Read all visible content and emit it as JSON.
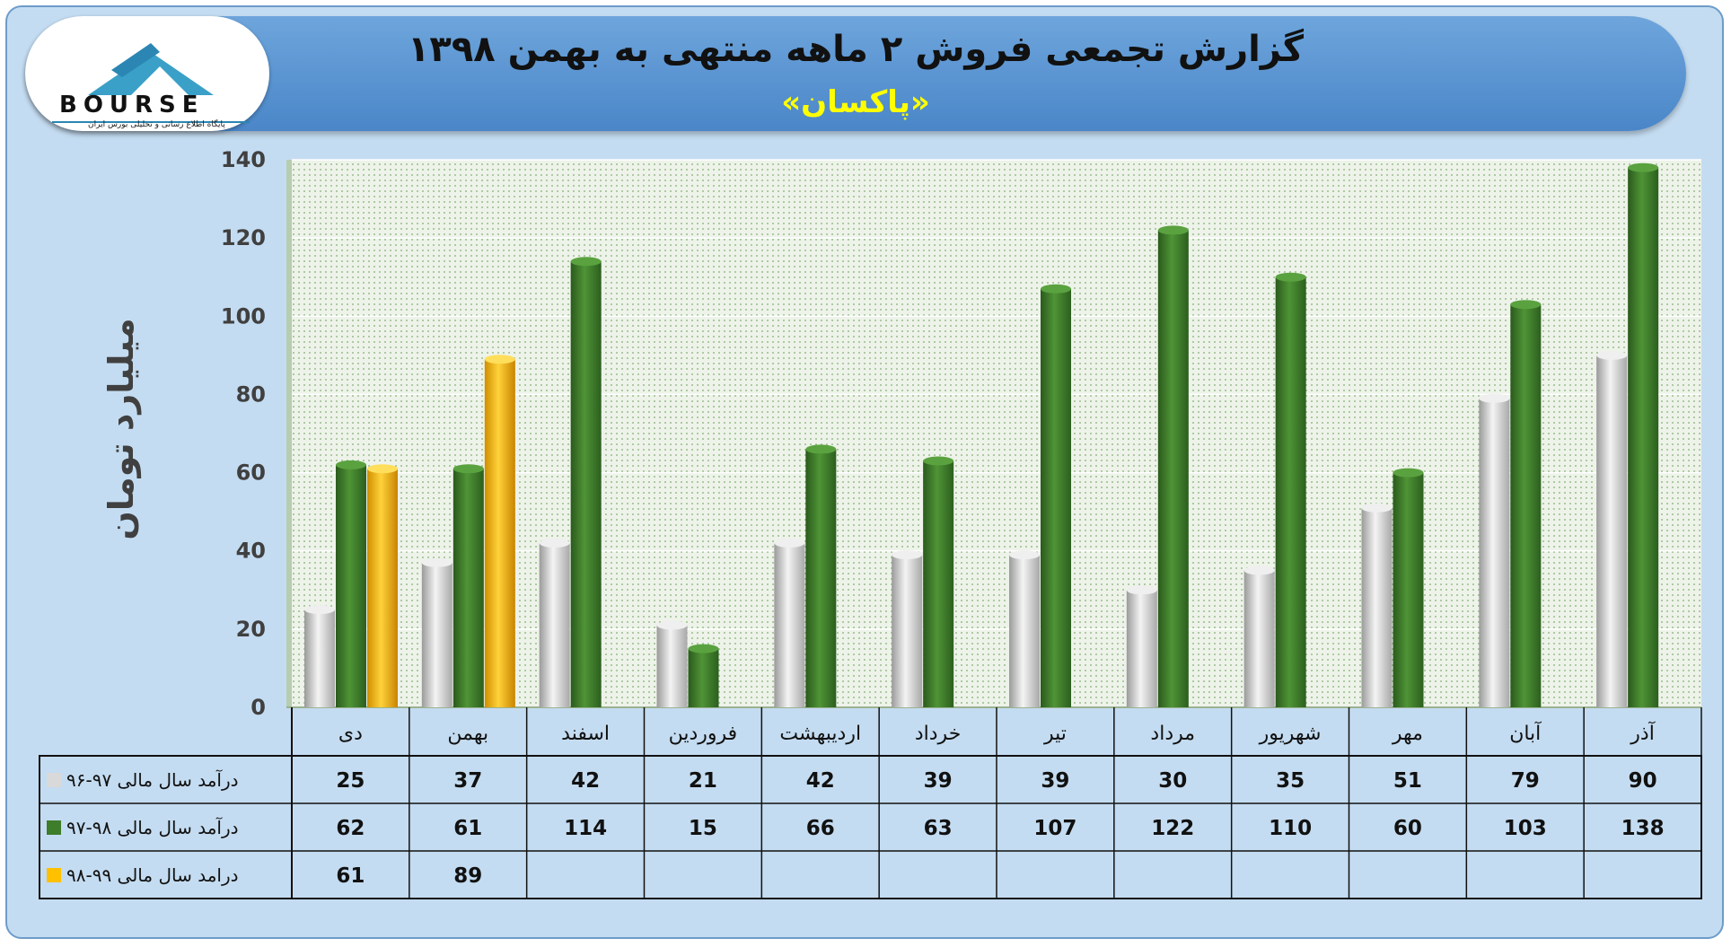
{
  "header": {
    "title": "گزارش تجمعی فروش ۲ ماهه منتهی به بهمن ۱۳۹۸",
    "subtitle": "«پاکسان»"
  },
  "logo": {
    "text": "BOURSE",
    "tagline": "پایگاه اطلاع رسانی و تحلیلی بورس ایران"
  },
  "chart_data": {
    "type": "bar",
    "ylabel": "میلیارد تومان",
    "ylim": [
      0,
      140
    ],
    "yticks": [
      0,
      20,
      40,
      60,
      80,
      100,
      120,
      140
    ],
    "grid": true,
    "categories": [
      "دی",
      "بهمن",
      "اسفند",
      "فروردین",
      "اردیبهشت",
      "خرداد",
      "تیر",
      "مرداد",
      "شهریور",
      "مهر",
      "آبان",
      "آذر"
    ],
    "series": [
      {
        "name": "درآمد سال مالی ۹۷-۹۶",
        "color": "#d9d9d9",
        "values": [
          25,
          37,
          42,
          21,
          42,
          39,
          39,
          30,
          35,
          51,
          79,
          90
        ]
      },
      {
        "name": "درآمد سال مالی ۹۸-۹۷",
        "color": "#3e7d2a",
        "values": [
          62,
          61,
          114,
          15,
          66,
          63,
          107,
          122,
          110,
          60,
          103,
          138
        ]
      },
      {
        "name": "درامد سال مالی ۹۹-۹۸",
        "color": "#ffc000",
        "values": [
          61,
          89,
          null,
          null,
          null,
          null,
          null,
          null,
          null,
          null,
          null,
          null
        ]
      }
    ]
  }
}
